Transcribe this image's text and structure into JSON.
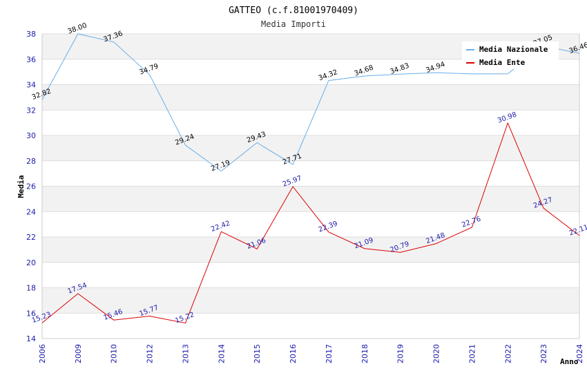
{
  "chart_data": {
    "type": "line",
    "title": "GATTEO (c.f.81001970409)",
    "subtitle": "Media Importi",
    "xlabel": "Anno",
    "ylabel": "Media",
    "ylim": [
      14,
      38
    ],
    "yticks": [
      "14",
      "16",
      "18",
      "20",
      "22",
      "24",
      "26",
      "28",
      "30",
      "32",
      "34",
      "36",
      "38"
    ],
    "categories": [
      "2006",
      "2009",
      "2010",
      "2012",
      "2013",
      "2014",
      "2015",
      "2016",
      "2017",
      "2018",
      "2019",
      "2020",
      "2021",
      "2022",
      "2023",
      "2024"
    ],
    "legend_position": "top-right",
    "series": [
      {
        "name": "Media Nazionale",
        "color": "#6aaee8",
        "label_color": "#000000",
        "values": [
          32.82,
          38.0,
          37.36,
          34.79,
          29.24,
          27.19,
          29.43,
          27.71,
          34.32,
          34.68,
          34.83,
          34.94,
          34.85,
          34.85,
          37.05,
          36.46
        ],
        "labels": [
          "32.82",
          "38.00",
          "37.36",
          "34.79",
          "29.24",
          "27.19",
          "29.43",
          "27.71",
          "34.32",
          "34.68",
          "34.83",
          "34.94",
          "",
          "",
          "37.05",
          "36.46"
        ]
      },
      {
        "name": "Media Ente",
        "color": "#dd0000",
        "label_color": "#1a1aaa",
        "values": [
          15.23,
          17.54,
          15.46,
          15.77,
          15.22,
          22.42,
          21.06,
          25.97,
          22.39,
          21.09,
          20.79,
          21.48,
          22.76,
          30.98,
          24.27,
          22.11
        ],
        "labels": [
          "15.23",
          "17.54",
          "15.46",
          "15.77",
          "15.22",
          "22.42",
          "21.06",
          "25.97",
          "22.39",
          "21.09",
          "20.79",
          "21.48",
          "22.76",
          "30.98",
          "24.27",
          "22.11"
        ]
      }
    ]
  }
}
